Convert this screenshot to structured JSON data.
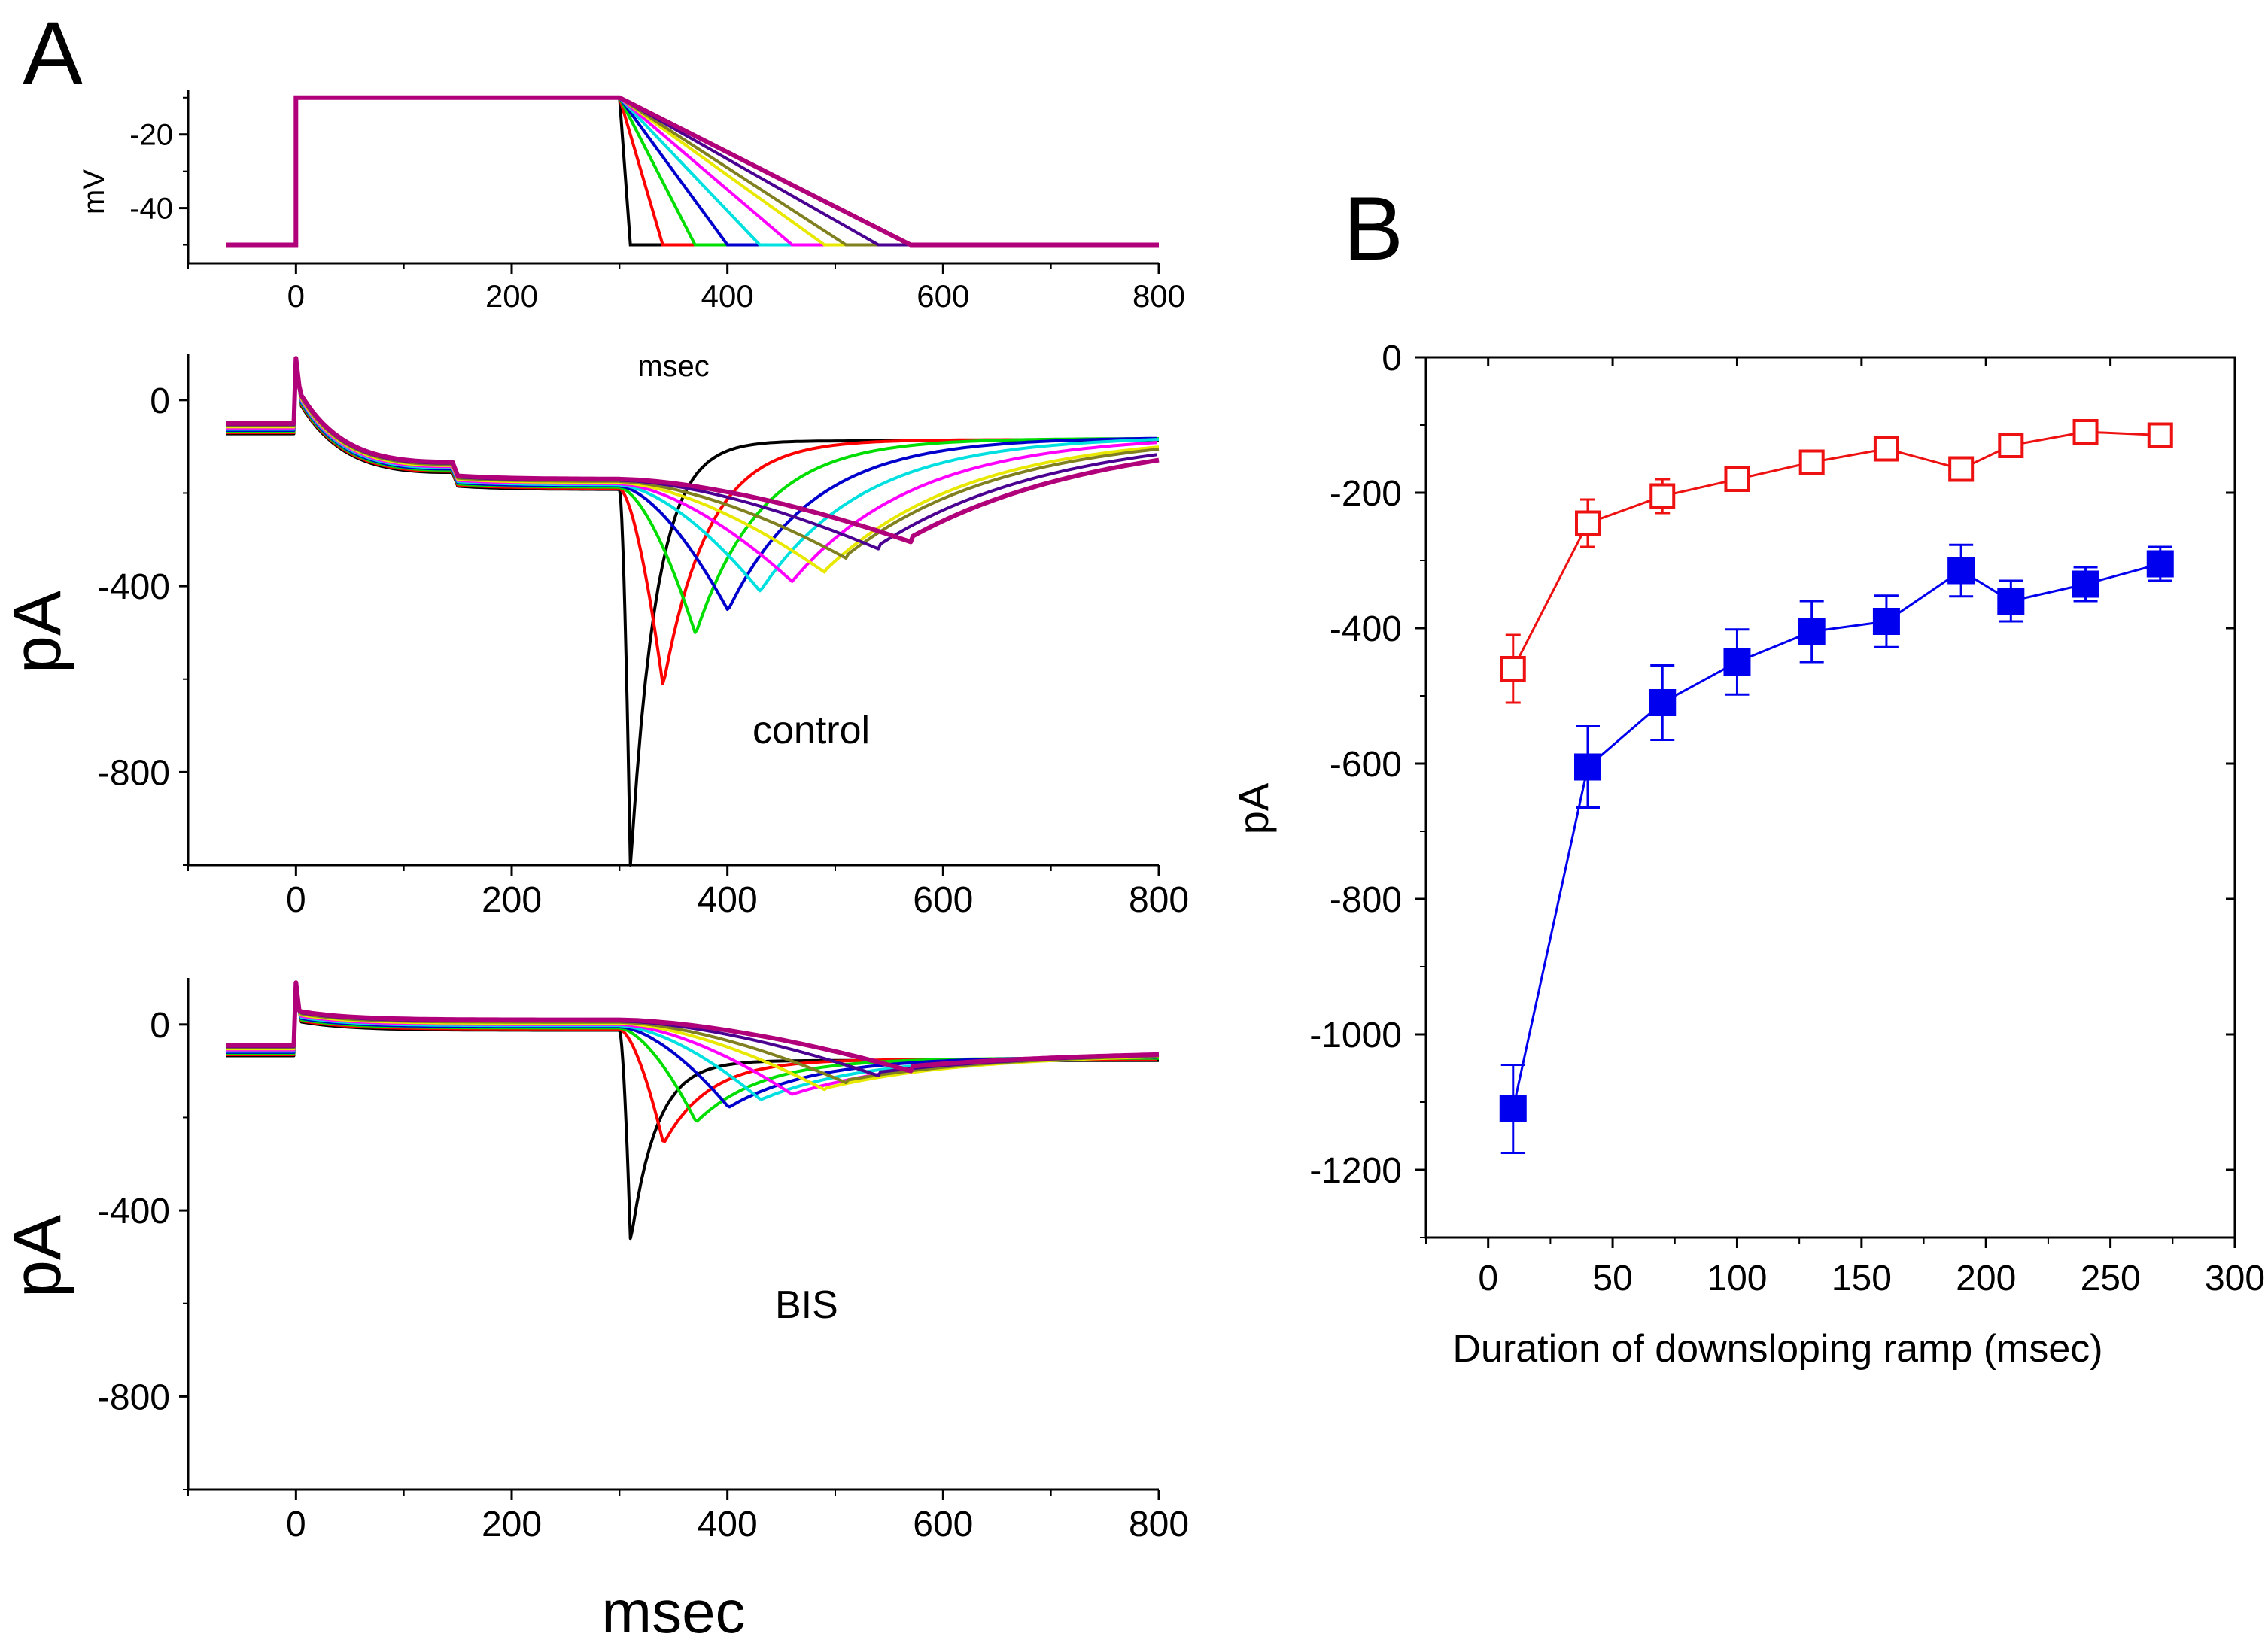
{
  "panel_labels": {
    "a": "A",
    "b": "B"
  },
  "chart_data": [
    {
      "id": "voltage",
      "type": "line",
      "title": "",
      "xlabel": "",
      "ylabel": "mV",
      "xlim": [
        -100,
        800
      ],
      "ylim": [
        -55,
        -8
      ],
      "xticks": [
        0,
        200,
        400,
        600,
        800
      ],
      "yticks": [
        -20,
        -40
      ],
      "holding": -50,
      "step": -10,
      "step_start": 0,
      "step_end": 300,
      "ramp_durations": [
        10,
        40,
        70,
        100,
        130,
        160,
        190,
        210,
        240,
        270
      ],
      "colors": [
        "#000000",
        "#ff0000",
        "#00dd00",
        "#0000cc",
        "#00e0e0",
        "#ff00ff",
        "#e8e800",
        "#808020",
        "#4a0090",
        "#b0007a"
      ]
    },
    {
      "id": "control",
      "type": "line",
      "title": "",
      "annotation": "control",
      "xlabel": "msec",
      "ylabel": "pA",
      "xlim": [
        -100,
        800
      ],
      "ylim": [
        -1000,
        100
      ],
      "xticks": [
        0,
        200,
        400,
        600,
        800
      ],
      "yticks": [
        0,
        -400,
        -800
      ],
      "baseline_pre": -60,
      "plateau_early": -150,
      "plateau": -180,
      "tail_end": -75,
      "series": [
        {
          "ramp": 10,
          "peak": -1000,
          "color": "#000000"
        },
        {
          "ramp": 40,
          "peak": -610,
          "color": "#ff0000"
        },
        {
          "ramp": 70,
          "peak": -500,
          "color": "#00dd00"
        },
        {
          "ramp": 100,
          "peak": -450,
          "color": "#0000cc"
        },
        {
          "ramp": 130,
          "peak": -410,
          "color": "#00e0e0"
        },
        {
          "ramp": 160,
          "peak": -390,
          "color": "#ff00ff"
        },
        {
          "ramp": 190,
          "peak": -370,
          "color": "#e8e800"
        },
        {
          "ramp": 210,
          "peak": -340,
          "color": "#808020"
        },
        {
          "ramp": 240,
          "peak": -320,
          "color": "#4a0090"
        },
        {
          "ramp": 270,
          "peak": -305,
          "color": "#b0007a"
        }
      ]
    },
    {
      "id": "bis",
      "type": "line",
      "title": "",
      "annotation": "BIS",
      "xlabel": "msec",
      "ylabel": "pA",
      "xlim": [
        -100,
        800
      ],
      "ylim": [
        -1000,
        100
      ],
      "xticks": [
        0,
        200,
        400,
        600,
        800
      ],
      "yticks": [
        0,
        -400,
        -800
      ],
      "baseline_pre": -55,
      "plateau_early": 0,
      "plateau": 0,
      "tail_end": -65,
      "series": [
        {
          "ramp": 10,
          "peak": -460,
          "color": "#000000"
        },
        {
          "ramp": 40,
          "peak": -250,
          "color": "#ff0000"
        },
        {
          "ramp": 70,
          "peak": -205,
          "color": "#00dd00"
        },
        {
          "ramp": 100,
          "peak": -175,
          "color": "#0000cc"
        },
        {
          "ramp": 130,
          "peak": -160,
          "color": "#00e0e0"
        },
        {
          "ramp": 160,
          "peak": -150,
          "color": "#ff00ff"
        },
        {
          "ramp": 190,
          "peak": -140,
          "color": "#e8e800"
        },
        {
          "ramp": 210,
          "peak": -125,
          "color": "#808020"
        },
        {
          "ramp": 240,
          "peak": -110,
          "color": "#4a0090"
        },
        {
          "ramp": 270,
          "peak": -100,
          "color": "#b0007a"
        }
      ]
    },
    {
      "id": "summary",
      "type": "scatter",
      "title": "",
      "xlabel": "Duration of downsloping ramp (msec)",
      "ylabel": "pA",
      "xlim": [
        -25,
        300
      ],
      "ylim": [
        -1300,
        0
      ],
      "xticks": [
        0,
        50,
        100,
        150,
        200,
        250,
        300
      ],
      "yticks": [
        0,
        -200,
        -400,
        -600,
        -800,
        -1000,
        -1200
      ],
      "x": [
        10,
        40,
        70,
        100,
        130,
        160,
        190,
        210,
        240,
        270
      ],
      "series": [
        {
          "name": "",
          "color": "#0000ee",
          "marker": "filled-square",
          "values": [
            -1110,
            -605,
            -510,
            -450,
            -405,
            -390,
            -315,
            -360,
            -335,
            -305
          ],
          "errors": [
            65,
            60,
            55,
            48,
            45,
            38,
            38,
            30,
            25,
            25
          ]
        },
        {
          "name": "",
          "color": "#ee1111",
          "marker": "open-square",
          "values": [
            -460,
            -245,
            -205,
            -180,
            -155,
            -135,
            -165,
            -130,
            -110,
            -115
          ],
          "errors": [
            50,
            35,
            25,
            15,
            12,
            12,
            12,
            12,
            12,
            12
          ]
        }
      ]
    }
  ]
}
